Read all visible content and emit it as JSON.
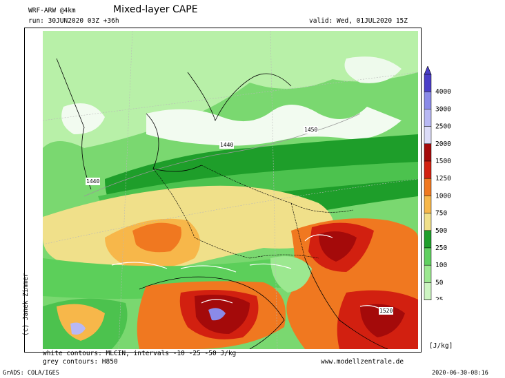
{
  "header": {
    "model": "WRF-ARW @4km",
    "title": "Mixed-layer CAPE",
    "run": "run: 30JUN2020 03Z +36h",
    "valid": "valid: Wed, 01JUL2020 15Z"
  },
  "map": {
    "contour_labels": [
      "1440",
      "1440",
      "1450",
      "1520"
    ],
    "colors": {
      "light_green": "#b8f0a8",
      "mid_green": "#60d060",
      "dark_green": "#1e9e2a",
      "yellow": "#f0e08a",
      "light_orange": "#f7b74a",
      "orange": "#f07820",
      "red": "#d22010",
      "dark_red": "#a40a0a",
      "lavender": "#d8d8f8",
      "violet": "#8a8ae8",
      "purple": "#4a3ec8"
    }
  },
  "legend": {
    "values": [
      "4000",
      "3000",
      "2500",
      "2000",
      "1500",
      "1250",
      "1000",
      "750",
      "500",
      "250",
      "100",
      "50",
      "25"
    ],
    "colors": [
      "#4a3ec8",
      "#8a8ae8",
      "#b8b8f4",
      "#dcdcf8",
      "#a40a0a",
      "#d22010",
      "#f07820",
      "#f7b74a",
      "#f0e08a",
      "#1e9e2a",
      "#60d060",
      "#9ce890",
      "#cdf5c2"
    ],
    "unit": "[J/kg]"
  },
  "footer": {
    "line1": "white contours: MLCIN, intervals -10 -25 -50 J/kg",
    "line2": "grey contours: H850",
    "website": "www.modellzentrale.de",
    "copyright": "(c) Janek Zimmer",
    "grads": "GrADS: COLA/IGES",
    "timestamp": "2020-06-30-08:16"
  }
}
